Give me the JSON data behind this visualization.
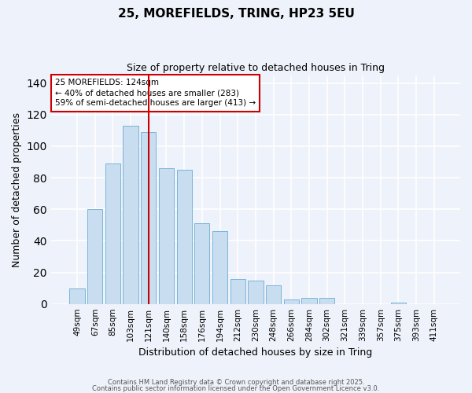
{
  "title_line1": "25, MOREFIELDS, TRING, HP23 5EU",
  "title_line2": "Size of property relative to detached houses in Tring",
  "xlabel": "Distribution of detached houses by size in Tring",
  "ylabel": "Number of detached properties",
  "bar_labels": [
    "49sqm",
    "67sqm",
    "85sqm",
    "103sqm",
    "121sqm",
    "140sqm",
    "158sqm",
    "176sqm",
    "194sqm",
    "212sqm",
    "230sqm",
    "248sqm",
    "266sqm",
    "284sqm",
    "302sqm",
    "321sqm",
    "339sqm",
    "357sqm",
    "375sqm",
    "393sqm",
    "411sqm"
  ],
  "bar_values": [
    10,
    60,
    89,
    113,
    109,
    86,
    85,
    51,
    46,
    16,
    15,
    12,
    3,
    4,
    4,
    0,
    0,
    0,
    1,
    0,
    0
  ],
  "bar_color": "#c9ddf0",
  "bar_edgecolor": "#7ab4d8",
  "vline_x": 4,
  "vline_color": "#cc0000",
  "annotation_line1": "25 MOREFIELDS: 124sqm",
  "annotation_line2": "← 40% of detached houses are smaller (283)",
  "annotation_line3": "59% of semi-detached houses are larger (413) →",
  "ylim": [
    0,
    145
  ],
  "yticks": [
    0,
    20,
    40,
    60,
    80,
    100,
    120,
    140
  ],
  "footer_line1": "Contains HM Land Registry data © Crown copyright and database right 2025.",
  "footer_line2": "Contains public sector information licensed under the Open Government Licence v3.0.",
  "background_color": "#eef2fa",
  "grid_color": "#ffffff"
}
